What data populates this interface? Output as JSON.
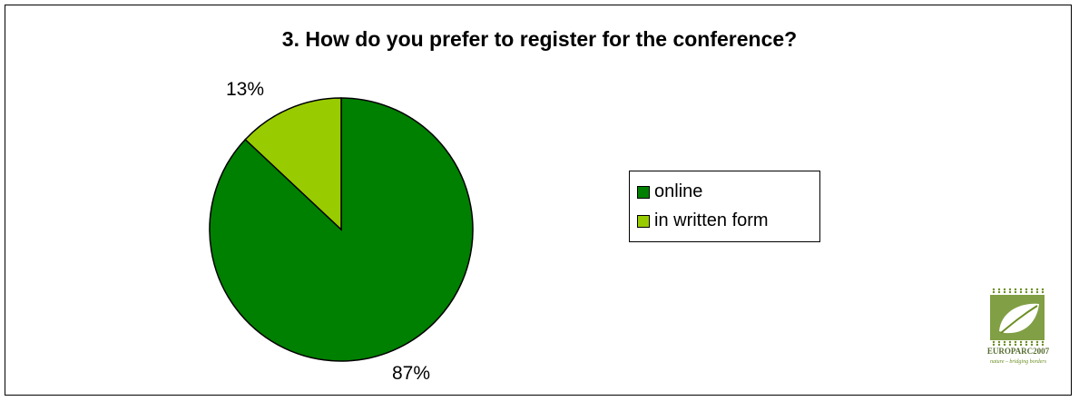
{
  "chart_data": {
    "type": "pie",
    "title": "3. How do you prefer to register for the conference?",
    "slices": [
      {
        "label": "online",
        "value": 87,
        "display": "87%",
        "color": "#008000"
      },
      {
        "label": "in written form",
        "value": 13,
        "display": "13%",
        "color": "#99cc00"
      }
    ],
    "legend_position": "right"
  },
  "logo": {
    "name": "EUROPARC2007",
    "tagline": "nature – bridging borders",
    "color": "#6b8e23"
  }
}
